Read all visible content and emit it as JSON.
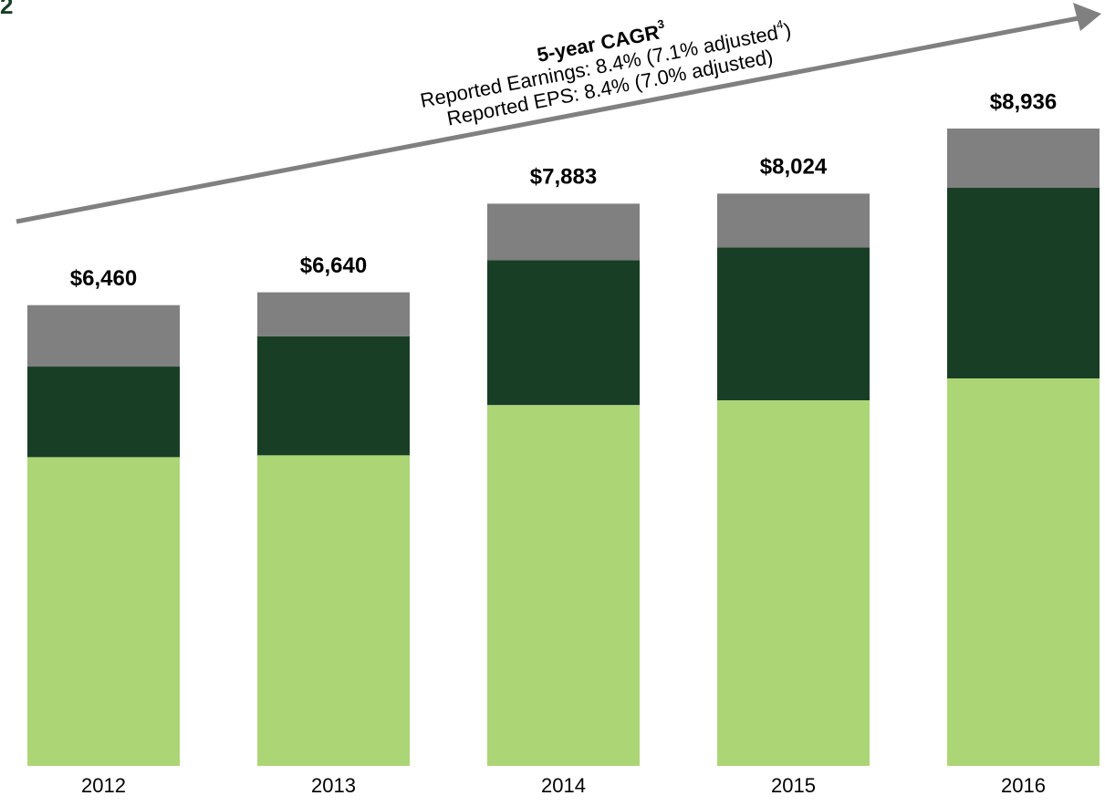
{
  "chart_data": {
    "type": "stacked_bar",
    "corner_label": "2",
    "annotation": {
      "title": "5-year CAGR",
      "title_sup": "3",
      "line1": "Reported Earnings: 8.4% (7.1% adjusted",
      "line1_sup": "4",
      "line1_end": ")",
      "line2": "Reported EPS:  8.4% (7.0% adjusted)"
    },
    "categories": [
      "2012",
      "2013",
      "2014",
      "2015",
      "2016"
    ],
    "series": [
      {
        "color": "#acd576",
        "values": [
          4329,
          4355,
          5060,
          5126,
          5433
        ]
      },
      {
        "color": "#183f25",
        "values": [
          1270,
          1667,
          2032,
          2143,
          2672
        ]
      },
      {
        "color": "#808080",
        "values": [
          861,
          618,
          791,
          755,
          831
        ]
      }
    ],
    "totals": [
      6460,
      6640,
      7883,
      8024,
      8936
    ],
    "total_labels": [
      "$6,460",
      "$6,640",
      "$7,883",
      "$8,024",
      "$8,936"
    ],
    "ylim": [
      0,
      9000
    ]
  }
}
